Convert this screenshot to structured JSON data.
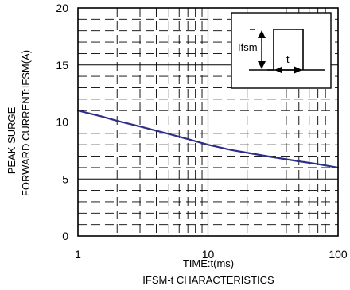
{
  "chart_data": {
    "type": "line",
    "title": "",
    "caption": "IFSM-t CHARACTERISTICS",
    "xlabel": "TIME:t(ms)",
    "ylabel_lines": [
      "PEAK SURGE",
      "FORWARD CURRENT:IFSM(A)"
    ],
    "x_scale": "log",
    "xlim": [
      1,
      100
    ],
    "ylim": [
      0,
      20
    ],
    "x_ticks": [
      1,
      10,
      100
    ],
    "x_tick_labels": [
      "1",
      "10",
      "100"
    ],
    "y_ticks": [
      0,
      5,
      10,
      15,
      20
    ],
    "y_tick_labels": [
      "0",
      "5",
      "10",
      "15",
      "20"
    ],
    "grid": true,
    "series": [
      {
        "color": "#2b2f86",
        "x": [
          1,
          1.5,
          2,
          3,
          5,
          7,
          10,
          15,
          20,
          30,
          50,
          70,
          100
        ],
        "y": [
          11.0,
          10.5,
          10.1,
          9.6,
          8.95,
          8.5,
          8.0,
          7.55,
          7.3,
          6.95,
          6.55,
          6.3,
          6.0
        ]
      }
    ],
    "inset": {
      "label_current": "Ifsm",
      "label_time": "t"
    }
  }
}
